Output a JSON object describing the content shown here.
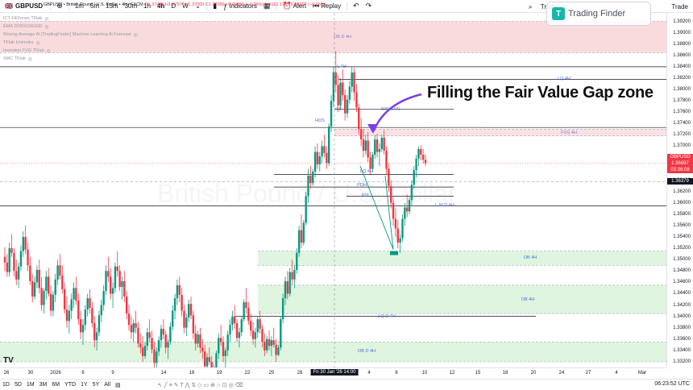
{
  "toolbar": {
    "symbol": "GBPUSD",
    "intervals": [
      "1m",
      "5m",
      "15m",
      "30m",
      "1h",
      "4h",
      "D",
      "W"
    ],
    "indicators_label": "Indicators",
    "alert_label": "Alert",
    "replay_label": "Replay",
    "trade_left": "Trade",
    "trade_right": "Trade"
  },
  "legend": {
    "title": "GBPUSD • British Pound / U.S. Dollar • 4h • FXCM",
    "ohlc": "O1.37445 H1.37577 L1.37000 C1.37089 −0.00356 (−0.26%) Vol112.17K ↓0.00207 (−0.15%)"
  },
  "indicators": [
    "ICT KillZones TFlab",
    "EMA 20/50/100/200",
    "Moving Average AI [TradingFinder] Machine Learning Ai Forecast",
    "TFlab Ichimoku",
    "Inversion FVG TFlab",
    "SMC TFlab"
  ],
  "logo_text": "Trading Finder",
  "watermark": "British Pound / U.S. Dollar",
  "annotation": "Filling the Fair Value Gap zone",
  "colors": {
    "up": "#089981",
    "down": "#f23645",
    "supply_zone": "#f7cfd3",
    "demand_zone": "#d4f1d6",
    "fvg_zone": "#f8d7da",
    "arrow": "#7b3fe4",
    "level_line": "#131722"
  },
  "price_axis": {
    "labels": [
      "1.39200",
      "1.39000",
      "1.38800",
      "1.38600",
      "1.38400",
      "1.38200",
      "1.38000",
      "1.37800",
      "1.37600",
      "1.37400",
      "1.37200",
      "1.37000",
      "1.36800",
      "1.36600",
      "1.36400",
      "1.36200",
      "1.36000",
      "1.35800",
      "1.35600",
      "1.35400",
      "1.35200",
      "1.35000",
      "1.34800",
      "1.34600",
      "1.34400",
      "1.34200",
      "1.34000",
      "1.33800",
      "1.33600",
      "1.33400",
      "1.33200"
    ],
    "current_symbol": "GBPUSD",
    "current_price": "1.36697",
    "countdown": "03:36:08",
    "crosshair_price": "1.36379"
  },
  "time_axis": {
    "labels": [
      "26",
      "30",
      "2026",
      "6",
      "9",
      "14",
      "16",
      "19",
      "22",
      "25",
      "28",
      "4",
      "6",
      "10",
      "12",
      "15",
      "18",
      "20",
      "24",
      "27",
      "4",
      "Mar"
    ],
    "current": "Fri 30 Jan '26  14:00"
  },
  "zones": {
    "ob_d_4h_top": "OB D 4H",
    "fvg_label": "FVG 4H",
    "lq_4h": "LQ 4H",
    "l_4h": "L 4H",
    "l_w_d_4h": "L W D 4H",
    "ob_4h_a": "OB 4H",
    "ob_4h_b": "OB 4H",
    "lq_d_4h": "LQ D 4H",
    "ob_d_4h_bottom": "OB D 4H",
    "fib_50": "50% FVG",
    "fib_05": "0.5",
    "lq_small": "LQ 4H",
    "pdl": "PDL",
    "pdh": "PDH",
    "hs": "HOS"
  },
  "bottom_bar": {
    "ranges": [
      "1D",
      "5D",
      "1M",
      "3M",
      "6M",
      "YTD",
      "1Y",
      "5Y",
      "All"
    ],
    "clock": "06:23:52 UTC"
  },
  "chart_data": {
    "type": "candlestick",
    "symbol": "GBPUSD",
    "timeframe": "4h",
    "ylim": [
      1.331,
      1.3935
    ],
    "candles": [
      [
        1.3505,
        1.3522,
        1.348,
        1.3495
      ],
      [
        1.3495,
        1.351,
        1.347,
        1.3478
      ],
      [
        1.3478,
        1.353,
        1.347,
        1.352
      ],
      [
        1.352,
        1.3545,
        1.3505,
        1.3512
      ],
      [
        1.3512,
        1.352,
        1.347,
        1.348
      ],
      [
        1.348,
        1.35,
        1.3455,
        1.3465
      ],
      [
        1.3465,
        1.3495,
        1.345,
        1.3488
      ],
      [
        1.3488,
        1.3525,
        1.348,
        1.3515
      ],
      [
        1.3515,
        1.355,
        1.3505,
        1.354
      ],
      [
        1.354,
        1.356,
        1.351,
        1.3518
      ],
      [
        1.3518,
        1.353,
        1.348,
        1.349
      ],
      [
        1.349,
        1.3505,
        1.3455,
        1.3462
      ],
      [
        1.3462,
        1.3475,
        1.3425,
        1.3435
      ],
      [
        1.3435,
        1.347,
        1.343,
        1.346
      ],
      [
        1.346,
        1.349,
        1.345,
        1.3482
      ],
      [
        1.3482,
        1.35,
        1.344,
        1.345
      ],
      [
        1.345,
        1.347,
        1.341,
        1.342
      ],
      [
        1.342,
        1.345,
        1.3405,
        1.3445
      ],
      [
        1.3445,
        1.348,
        1.343,
        1.347
      ],
      [
        1.347,
        1.3485,
        1.3435,
        1.344
      ],
      [
        1.344,
        1.3455,
        1.34,
        1.341
      ],
      [
        1.341,
        1.3445,
        1.34,
        1.3438
      ],
      [
        1.3438,
        1.3475,
        1.3425,
        1.3465
      ],
      [
        1.3465,
        1.35,
        1.3455,
        1.349
      ],
      [
        1.349,
        1.351,
        1.3465,
        1.3472
      ],
      [
        1.3472,
        1.349,
        1.344,
        1.3448
      ],
      [
        1.3448,
        1.346,
        1.3405,
        1.3412
      ],
      [
        1.3412,
        1.3435,
        1.338,
        1.3392
      ],
      [
        1.3392,
        1.342,
        1.337,
        1.341
      ],
      [
        1.341,
        1.344,
        1.3395,
        1.343
      ],
      [
        1.343,
        1.346,
        1.3415,
        1.345
      ],
      [
        1.345,
        1.347,
        1.342,
        1.3428
      ],
      [
        1.3428,
        1.344,
        1.3385,
        1.3395
      ],
      [
        1.3395,
        1.341,
        1.336,
        1.3372
      ],
      [
        1.3372,
        1.3395,
        1.335,
        1.3385
      ],
      [
        1.3385,
        1.342,
        1.3375,
        1.3412
      ],
      [
        1.3412,
        1.344,
        1.34,
        1.3432
      ],
      [
        1.3432,
        1.3448,
        1.3405,
        1.3415
      ],
      [
        1.3415,
        1.3425,
        1.338,
        1.3388
      ],
      [
        1.3388,
        1.34,
        1.3345,
        1.3358
      ],
      [
        1.3358,
        1.338,
        1.334,
        1.3372
      ],
      [
        1.3372,
        1.341,
        1.3365,
        1.3402
      ],
      [
        1.3402,
        1.343,
        1.339,
        1.342
      ],
      [
        1.342,
        1.3455,
        1.341,
        1.3445
      ],
      [
        1.3445,
        1.349,
        1.3438,
        1.348
      ],
      [
        1.348,
        1.3505,
        1.346,
        1.347
      ],
      [
        1.347,
        1.3485,
        1.343,
        1.344
      ],
      [
        1.344,
        1.346,
        1.3415,
        1.345
      ],
      [
        1.345,
        1.3495,
        1.3442,
        1.3488
      ],
      [
        1.3488,
        1.3515,
        1.347,
        1.348
      ],
      [
        1.348,
        1.349,
        1.3445,
        1.3452
      ],
      [
        1.3452,
        1.347,
        1.343,
        1.3462
      ],
      [
        1.3462,
        1.348,
        1.3425,
        1.3435
      ],
      [
        1.3435,
        1.3445,
        1.3395,
        1.3405
      ],
      [
        1.3405,
        1.342,
        1.3375,
        1.3385
      ],
      [
        1.3385,
        1.34,
        1.336,
        1.3372
      ],
      [
        1.3372,
        1.3395,
        1.3355,
        1.3388
      ],
      [
        1.3388,
        1.341,
        1.337,
        1.338
      ],
      [
        1.338,
        1.339,
        1.3345,
        1.3352
      ],
      [
        1.3352,
        1.337,
        1.3335,
        1.3345
      ],
      [
        1.3345,
        1.3365,
        1.332,
        1.333
      ],
      [
        1.333,
        1.3355,
        1.3325,
        1.3348
      ],
      [
        1.3348,
        1.338,
        1.334,
        1.3372
      ],
      [
        1.3372,
        1.3395,
        1.3355,
        1.3362
      ],
      [
        1.3362,
        1.3375,
        1.3335,
        1.3342
      ],
      [
        1.3342,
        1.3355,
        1.3305,
        1.3318
      ],
      [
        1.3318,
        1.3345,
        1.331,
        1.3338
      ],
      [
        1.3338,
        1.3365,
        1.333,
        1.3358
      ],
      [
        1.3358,
        1.3385,
        1.3345,
        1.3378
      ],
      [
        1.3378,
        1.3395,
        1.336,
        1.3368
      ],
      [
        1.3368,
        1.3375,
        1.3335,
        1.3345
      ],
      [
        1.3345,
        1.336,
        1.3325,
        1.3355
      ],
      [
        1.3355,
        1.339,
        1.335,
        1.3382
      ],
      [
        1.3382,
        1.342,
        1.3375,
        1.341
      ],
      [
        1.341,
        1.344,
        1.3395,
        1.3432
      ],
      [
        1.3432,
        1.3465,
        1.342,
        1.3455
      ],
      [
        1.3455,
        1.347,
        1.3425,
        1.3438
      ],
      [
        1.3438,
        1.345,
        1.34,
        1.341
      ],
      [
        1.341,
        1.342,
        1.337,
        1.338
      ],
      [
        1.338,
        1.3405,
        1.3365,
        1.3398
      ],
      [
        1.3398,
        1.343,
        1.339,
        1.3422
      ],
      [
        1.3422,
        1.3435,
        1.3395,
        1.3402
      ],
      [
        1.3402,
        1.341,
        1.336,
        1.337
      ],
      [
        1.337,
        1.3385,
        1.334,
        1.3352
      ],
      [
        1.3352,
        1.3375,
        1.3345,
        1.3368
      ],
      [
        1.3368,
        1.338,
        1.3335,
        1.3345
      ],
      [
        1.3345,
        1.336,
        1.3325,
        1.3338
      ],
      [
        1.3338,
        1.335,
        1.33,
        1.3312
      ],
      [
        1.3312,
        1.3335,
        1.33,
        1.3328
      ],
      [
        1.3328,
        1.3345,
        1.3315,
        1.332
      ],
      [
        1.332,
        1.333,
        1.3285,
        1.3295
      ],
      [
        1.3295,
        1.3315,
        1.328,
        1.3308
      ],
      [
        1.3308,
        1.334,
        1.33,
        1.3335
      ],
      [
        1.3335,
        1.337,
        1.3325,
        1.3362
      ],
      [
        1.3362,
        1.3385,
        1.3348,
        1.3355
      ],
      [
        1.3355,
        1.3365,
        1.332,
        1.333
      ],
      [
        1.333,
        1.3345,
        1.331,
        1.334
      ],
      [
        1.334,
        1.3375,
        1.333,
        1.3368
      ],
      [
        1.3368,
        1.3395,
        1.3355,
        1.3385
      ],
      [
        1.3385,
        1.341,
        1.3375,
        1.34
      ],
      [
        1.34,
        1.342,
        1.3378,
        1.3388
      ],
      [
        1.3388,
        1.3395,
        1.3355,
        1.3362
      ],
      [
        1.3362,
        1.338,
        1.3345,
        1.3372
      ],
      [
        1.3372,
        1.34,
        1.3365,
        1.3395
      ],
      [
        1.3395,
        1.343,
        1.339,
        1.3425
      ],
      [
        1.3425,
        1.345,
        1.3405,
        1.3415
      ],
      [
        1.3415,
        1.3425,
        1.3385,
        1.3392
      ],
      [
        1.3392,
        1.3405,
        1.3365,
        1.3375
      ],
      [
        1.3375,
        1.339,
        1.335,
        1.336
      ],
      [
        1.336,
        1.338,
        1.3345,
        1.3372
      ],
      [
        1.3372,
        1.34,
        1.3362,
        1.3395
      ],
      [
        1.3395,
        1.341,
        1.337,
        1.3378
      ],
      [
        1.3378,
        1.3385,
        1.3345,
        1.3355
      ],
      [
        1.3355,
        1.337,
        1.333,
        1.334
      ],
      [
        1.334,
        1.3365,
        1.3335,
        1.336
      ],
      [
        1.336,
        1.3375,
        1.334,
        1.3348
      ],
      [
        1.3348,
        1.3365,
        1.333,
        1.3358
      ],
      [
        1.3358,
        1.338,
        1.3345,
        1.335
      ],
      [
        1.335,
        1.336,
        1.332,
        1.3332
      ],
      [
        1.3332,
        1.335,
        1.333,
        1.3345
      ],
      [
        1.3345,
        1.34,
        1.334,
        1.3395
      ],
      [
        1.3395,
        1.344,
        1.3388,
        1.3432
      ],
      [
        1.3432,
        1.347,
        1.342,
        1.3462
      ],
      [
        1.3462,
        1.348,
        1.343,
        1.344
      ],
      [
        1.344,
        1.3485,
        1.3435,
        1.3478
      ],
      [
        1.3478,
        1.35,
        1.3455,
        1.3465
      ],
      [
        1.3465,
        1.349,
        1.345,
        1.3482
      ],
      [
        1.3482,
        1.352,
        1.3475,
        1.3512
      ],
      [
        1.3512,
        1.356,
        1.3505,
        1.3552
      ],
      [
        1.3552,
        1.358,
        1.352,
        1.353
      ],
      [
        1.353,
        1.357,
        1.3525,
        1.3565
      ],
      [
        1.3565,
        1.362,
        1.356,
        1.3612
      ],
      [
        1.3612,
        1.366,
        1.36,
        1.3648
      ],
      [
        1.3648,
        1.3665,
        1.3625,
        1.3635
      ],
      [
        1.3635,
        1.366,
        1.363,
        1.3655
      ],
      [
        1.3655,
        1.37,
        1.3645,
        1.369
      ],
      [
        1.369,
        1.3705,
        1.366,
        1.3668
      ],
      [
        1.3668,
        1.369,
        1.3655,
        1.3682
      ],
      [
        1.3682,
        1.371,
        1.367,
        1.37
      ],
      [
        1.37,
        1.372,
        1.368,
        1.3688
      ],
      [
        1.3688,
        1.37,
        1.366,
        1.367
      ],
      [
        1.367,
        1.374,
        1.3665,
        1.3735
      ],
      [
        1.3735,
        1.379,
        1.3725,
        1.378
      ],
      [
        1.378,
        1.384,
        1.377,
        1.383
      ],
      [
        1.383,
        1.3868,
        1.3795,
        1.3808
      ],
      [
        1.3808,
        1.3825,
        1.376,
        1.3772
      ],
      [
        1.3772,
        1.382,
        1.3765,
        1.3812
      ],
      [
        1.3812,
        1.3835,
        1.378,
        1.379
      ],
      [
        1.379,
        1.38,
        1.3745,
        1.3758
      ],
      [
        1.3758,
        1.379,
        1.375,
        1.3782
      ],
      [
        1.3782,
        1.3815,
        1.3775,
        1.3805
      ],
      [
        1.3805,
        1.384,
        1.3795,
        1.383
      ],
      [
        1.383,
        1.3838,
        1.378,
        1.3795
      ],
      [
        1.3795,
        1.381,
        1.376,
        1.3768
      ],
      [
        1.3768,
        1.3775,
        1.372,
        1.373
      ],
      [
        1.373,
        1.375,
        1.37,
        1.3712
      ],
      [
        1.3712,
        1.373,
        1.368,
        1.3692
      ],
      [
        1.3692,
        1.372,
        1.3685,
        1.371
      ],
      [
        1.371,
        1.3725,
        1.3672,
        1.368
      ],
      [
        1.368,
        1.369,
        1.365,
        1.366
      ],
      [
        1.366,
        1.369,
        1.3655,
        1.3685
      ],
      [
        1.3685,
        1.372,
        1.3678,
        1.3712
      ],
      [
        1.3712,
        1.3722,
        1.368,
        1.369
      ],
      [
        1.369,
        1.3705,
        1.3665,
        1.3695
      ],
      [
        1.3695,
        1.372,
        1.369,
        1.3715
      ],
      [
        1.3715,
        1.3728,
        1.3685,
        1.3692
      ],
      [
        1.3692,
        1.37,
        1.365,
        1.366
      ],
      [
        1.366,
        1.367,
        1.362,
        1.363
      ],
      [
        1.363,
        1.364,
        1.359,
        1.36
      ],
      [
        1.36,
        1.361,
        1.356,
        1.3572
      ],
      [
        1.3572,
        1.359,
        1.354,
        1.3555
      ],
      [
        1.3555,
        1.357,
        1.352,
        1.353
      ],
      [
        1.353,
        1.3545,
        1.3512,
        1.3538
      ],
      [
        1.3538,
        1.358,
        1.3532,
        1.3572
      ],
      [
        1.3572,
        1.36,
        1.356,
        1.3592
      ],
      [
        1.3592,
        1.3615,
        1.3575,
        1.3585
      ],
      [
        1.3585,
        1.361,
        1.358,
        1.3605
      ],
      [
        1.3605,
        1.364,
        1.3595,
        1.3632
      ],
      [
        1.3632,
        1.3665,
        1.3625,
        1.3658
      ],
      [
        1.3658,
        1.3685,
        1.3645,
        1.3678
      ],
      [
        1.3678,
        1.37,
        1.3665,
        1.3695
      ],
      [
        1.3695,
        1.3702,
        1.3675,
        1.3685
      ],
      [
        1.3685,
        1.3695,
        1.367,
        1.3676
      ],
      [
        1.3676,
        1.3685,
        1.3665,
        1.367
      ]
    ],
    "zones": [
      {
        "label": "OB D 4H",
        "top": 1.392,
        "bottom": 1.3865,
        "color": "#f7cfd3"
      },
      {
        "label": "FVG 4H",
        "top": 1.373,
        "bottom": 1.3718,
        "color": "#f8d7da"
      },
      {
        "label": "OB 4H",
        "top": 1.3515,
        "bottom": 1.349,
        "color": "#d4f1d6"
      },
      {
        "label": "OB 4H",
        "top": 1.3455,
        "bottom": 1.3405,
        "color": "#d4f1d6"
      },
      {
        "label": "OB D 4H",
        "top": 1.3355,
        "bottom": 1.332,
        "color": "#d4f1d6"
      }
    ],
    "levels": [
      {
        "label": "L 4H",
        "price": 1.384
      },
      {
        "label": "LQ 4H",
        "price": 1.3818
      },
      {
        "label": "L W D 4H",
        "price": 1.3595
      },
      {
        "label": "LQ D 4H",
        "price": 1.34
      },
      {
        "label": "50% FVG",
        "price": 1.3765
      },
      {
        "label": "LQ 4H",
        "price": 1.365
      },
      {
        "label": "PDH",
        "price": 1.3628
      },
      {
        "label": "PDL",
        "price": 1.3612
      }
    ],
    "current_price": 1.36697
  }
}
